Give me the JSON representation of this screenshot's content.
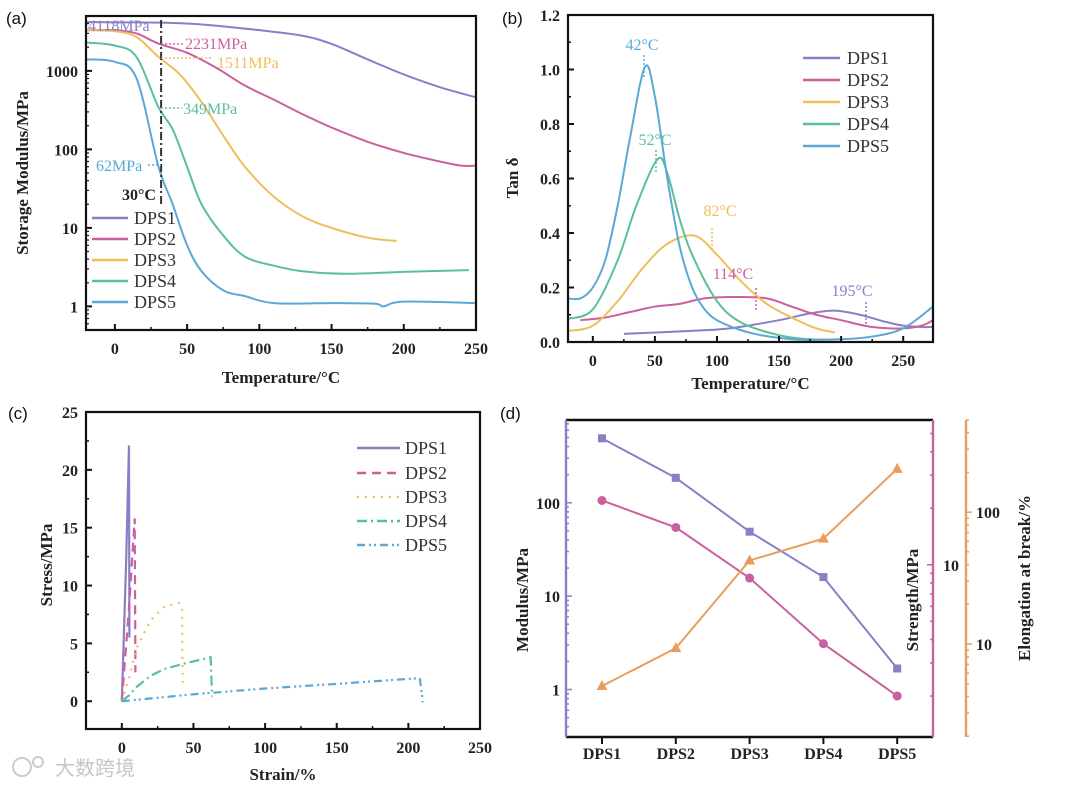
{
  "panel_labels": [
    "(a)",
    "(b)",
    "(c)",
    "(d)"
  ],
  "watermark": "大数跨境",
  "colors": {
    "DPS1": "#8a7fc6",
    "DPS2": "#c8619e",
    "DPS3": "#efbf5c",
    "DPS4": "#5bbf9a",
    "DPS5": "#5ba8d6",
    "elongation": "#e89d5e"
  },
  "chart_data": [
    {
      "type": "line",
      "xlabel": "Temperature/°C",
      "ylabel": "Storage Modulus/MPa",
      "xlim": [
        -20,
        250
      ],
      "ylim": [
        0.5,
        5000
      ],
      "yscale": "log",
      "xticks": [
        "0",
        "50",
        "100",
        "150",
        "200",
        "250"
      ],
      "yticks": [
        "1",
        "10",
        "100",
        "1000"
      ],
      "legend": "bottom-left",
      "annotations": [
        "4118MPa",
        "2231MPa",
        "1511MPa",
        "349MPa",
        "62MPa",
        "30°C"
      ],
      "series": [
        {
          "name": "DPS1",
          "x": [
            -20,
            0,
            30,
            60,
            100,
            130,
            150,
            175,
            200,
            225,
            250
          ],
          "y": [
            4200,
            4150,
            4118,
            3900,
            3300,
            2800,
            2200,
            1400,
            900,
            620,
            460
          ]
        },
        {
          "name": "DPS2",
          "x": [
            -20,
            0,
            15,
            30,
            50,
            70,
            90,
            110,
            130,
            150,
            175,
            200,
            225,
            240,
            250
          ],
          "y": [
            3300,
            3300,
            3000,
            2231,
            1700,
            1100,
            650,
            430,
            280,
            190,
            125,
            90,
            70,
            62,
            62
          ]
        },
        {
          "name": "DPS3",
          "x": [
            -20,
            0,
            15,
            30,
            45,
            60,
            75,
            90,
            110,
            130,
            150,
            175,
            195
          ],
          "y": [
            3300,
            3200,
            2700,
            1511,
            900,
            400,
            150,
            60,
            25,
            14,
            10,
            7.5,
            6.8
          ]
        },
        {
          "name": "DPS4",
          "x": [
            -20,
            0,
            15,
            30,
            40,
            50,
            60,
            75,
            90,
            110,
            130,
            160,
            200,
            245
          ],
          "y": [
            2300,
            2100,
            1500,
            349,
            180,
            60,
            20,
            8,
            4.3,
            3.3,
            2.8,
            2.6,
            2.75,
            2.9
          ]
        },
        {
          "name": "DPS5",
          "x": [
            -20,
            0,
            15,
            30,
            40,
            50,
            60,
            75,
            90,
            110,
            150,
            180,
            186,
            200,
            250
          ],
          "y": [
            1400,
            1300,
            800,
            62,
            20,
            6,
            2.8,
            1.6,
            1.35,
            1.1,
            1.1,
            1.08,
            1.0,
            1.15,
            1.1
          ]
        }
      ]
    },
    {
      "type": "line",
      "xlabel": "Temperature/°C",
      "ylabel": "Tan δ",
      "xlim": [
        -20,
        274
      ],
      "ylim": [
        0,
        1.2
      ],
      "xticks": [
        "0",
        "50",
        "100",
        "150",
        "200",
        "250"
      ],
      "yticks": [
        "0.0",
        "0.2",
        "0.4",
        "0.6",
        "0.8",
        "1.0",
        "1.2"
      ],
      "legend": "top-right",
      "annotations": [
        "42°C",
        "52°C",
        "82°C",
        "114°C",
        "195°C"
      ],
      "series": [
        {
          "name": "DPS1",
          "x": [
            25,
            75,
            110,
            150,
            175,
            195,
            215,
            235,
            250,
            265,
            274
          ],
          "y": [
            0.03,
            0.04,
            0.05,
            0.08,
            0.105,
            0.115,
            0.1,
            0.075,
            0.06,
            0.055,
            0.055
          ]
        },
        {
          "name": "DPS2",
          "x": [
            -10,
            10,
            30,
            50,
            70,
            90,
            114,
            140,
            160,
            180,
            200,
            225,
            250,
            265,
            274
          ],
          "y": [
            0.08,
            0.09,
            0.11,
            0.13,
            0.14,
            0.16,
            0.165,
            0.16,
            0.13,
            0.1,
            0.08,
            0.055,
            0.05,
            0.06,
            0.08
          ]
        },
        {
          "name": "DPS3",
          "x": [
            -20,
            0,
            20,
            40,
            60,
            82,
            100,
            120,
            140,
            160,
            180,
            195
          ],
          "y": [
            0.04,
            0.06,
            0.15,
            0.27,
            0.36,
            0.39,
            0.32,
            0.22,
            0.14,
            0.09,
            0.05,
            0.035
          ]
        },
        {
          "name": "DPS4",
          "x": [
            -20,
            0,
            20,
            35,
            52,
            60,
            70,
            80,
            100,
            120,
            150,
            175,
            200
          ],
          "y": [
            0.085,
            0.12,
            0.3,
            0.5,
            0.67,
            0.62,
            0.45,
            0.32,
            0.15,
            0.07,
            0.025,
            0.01,
            0.01
          ]
        },
        {
          "name": "DPS5",
          "x": [
            -20,
            -10,
            0,
            10,
            20,
            30,
            42,
            50,
            60,
            70,
            80,
            90,
            100,
            115,
            130,
            150,
            170,
            200,
            225,
            250,
            274
          ],
          "y": [
            0.16,
            0.16,
            0.2,
            0.3,
            0.5,
            0.75,
            1.01,
            0.9,
            0.6,
            0.35,
            0.2,
            0.12,
            0.08,
            0.05,
            0.03,
            0.015,
            0.008,
            0.01,
            0.02,
            0.05,
            0.13
          ]
        }
      ]
    },
    {
      "type": "line",
      "xlabel": "Strain/%",
      "ylabel": "Stress/MPa",
      "xlim": [
        -25,
        250
      ],
      "ylim": [
        -2.4,
        25
      ],
      "xticks": [
        "0",
        "50",
        "100",
        "150",
        "200",
        "250"
      ],
      "yticks": [
        "0",
        "5",
        "10",
        "15",
        "20",
        "25"
      ],
      "legend": "top-right",
      "series": [
        {
          "name": "DPS1",
          "x": [
            0,
            3,
            5,
            5.3
          ],
          "y": [
            0,
            12,
            22.1,
            5.5
          ]
        },
        {
          "name": "DPS2",
          "x": [
            0,
            5,
            9,
            9.5
          ],
          "y": [
            0,
            8,
            15.8,
            2.5
          ]
        },
        {
          "name": "DPS3",
          "x": [
            0,
            5,
            10,
            20,
            30,
            40,
            42,
            42.5
          ],
          "y": [
            0,
            2,
            4.5,
            7,
            8.2,
            8.5,
            8.2,
            1.2
          ]
        },
        {
          "name": "DPS4",
          "x": [
            0,
            5,
            10,
            20,
            30,
            45,
            62,
            63
          ],
          "y": [
            0,
            0.5,
            1.2,
            2.2,
            2.8,
            3.3,
            3.8,
            0.4
          ]
        },
        {
          "name": "DPS5",
          "x": [
            0,
            50,
            100,
            150,
            208,
            210
          ],
          "y": [
            0,
            0.6,
            1.1,
            1.5,
            2.0,
            -0.1
          ]
        }
      ]
    },
    {
      "type": "line",
      "categories": [
        "DPS1",
        "DPS2",
        "DPS3",
        "DPS4",
        "DPS5"
      ],
      "series": [
        {
          "name": "Modulus",
          "axis": "left",
          "ylabel": "Modulus/MPa",
          "ylim": [
            0.31,
            770
          ],
          "yscale": "log",
          "yticks": [
            "1",
            "10",
            "100"
          ],
          "values": [
            490,
            185,
            49,
            16,
            1.68
          ],
          "marker": "square"
        },
        {
          "name": "Strength",
          "axis": "right",
          "ylabel": "Strength/MPa",
          "ylim": [
            1.21,
            59
          ],
          "yscale": "log",
          "yticks": [
            "10"
          ],
          "values": [
            22,
            15.8,
            8.5,
            3.8,
            2.0
          ],
          "marker": "circle"
        },
        {
          "name": "Elongation",
          "axis": "right-offset",
          "ylabel": "Elongation at break/%",
          "ylim": [
            1.97,
            500
          ],
          "yscale": "log",
          "yticks": [
            "10",
            "100"
          ],
          "values": [
            4.8,
            9.3,
            43,
            63,
            213
          ],
          "marker": "triangle"
        }
      ]
    }
  ]
}
